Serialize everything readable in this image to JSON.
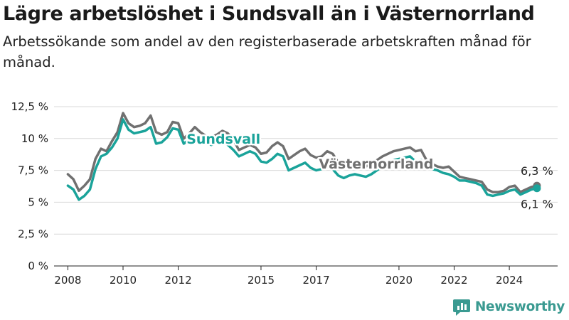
{
  "title": "Lägre arbetslöshet i Sundsvall än i Västernorrland",
  "subtitle": "Arbetssökande som andel av den registerbaserade arbetskraften månad för månad.",
  "brand": "Newsworthy",
  "colors": {
    "sundsvall": "#1aa39a",
    "vasternorrland": "#707070",
    "brand": "#3a9a91"
  },
  "chart_data": {
    "type": "line",
    "title": "Lägre arbetslöshet i Sundsvall än i Västernorrland",
    "subtitle": "Arbetssökande som andel av den registerbaserade arbetskraften månad för månad.",
    "xlabel": "",
    "ylabel": "",
    "xlim": [
      2007.5,
      2025.75
    ],
    "ylim": [
      0,
      12.5
    ],
    "grid": "horizontal",
    "y_ticks": [
      0,
      2.5,
      5,
      7.5,
      10,
      12.5
    ],
    "y_tick_labels": [
      "0 %",
      "2,5 %",
      "5 %",
      "7,5 %",
      "10 %",
      "12,5 %"
    ],
    "x_ticks": [
      2008,
      2010,
      2012,
      2015,
      2017,
      2020,
      2022,
      2024
    ],
    "x_tick_labels": [
      "2008",
      "2010",
      "2012",
      "2015",
      "2017",
      "2020",
      "2022",
      "2024"
    ],
    "series": [
      {
        "name": "Västernorrland",
        "color": "#707070",
        "end_label": "6,3 %",
        "x": [
          2008.0,
          2008.2,
          2008.4,
          2008.6,
          2008.8,
          2009.0,
          2009.2,
          2009.4,
          2009.6,
          2009.8,
          2010.0,
          2010.2,
          2010.4,
          2010.6,
          2010.8,
          2011.0,
          2011.2,
          2011.4,
          2011.6,
          2011.8,
          2012.0,
          2012.2,
          2012.4,
          2012.6,
          2012.8,
          2013.0,
          2013.2,
          2013.4,
          2013.6,
          2013.8,
          2014.0,
          2014.2,
          2014.4,
          2014.6,
          2014.8,
          2015.0,
          2015.2,
          2015.4,
          2015.6,
          2015.8,
          2016.0,
          2016.2,
          2016.4,
          2016.6,
          2016.8,
          2017.0,
          2017.2,
          2017.4,
          2017.6,
          2017.8,
          2018.0,
          2018.2,
          2018.4,
          2018.6,
          2018.8,
          2019.0,
          2019.2,
          2019.4,
          2019.6,
          2019.8,
          2020.0,
          2020.2,
          2020.4,
          2020.6,
          2020.8,
          2021.0,
          2021.2,
          2021.4,
          2021.6,
          2021.8,
          2022.0,
          2022.2,
          2022.4,
          2022.6,
          2022.8,
          2023.0,
          2023.2,
          2023.4,
          2023.6,
          2023.8,
          2024.0,
          2024.2,
          2024.4,
          2024.6,
          2024.8,
          2025.0
        ],
        "values": [
          7.2,
          6.8,
          5.9,
          6.3,
          6.8,
          8.4,
          9.2,
          9.0,
          9.8,
          10.5,
          12.0,
          11.2,
          10.9,
          11.0,
          11.2,
          11.8,
          10.5,
          10.3,
          10.5,
          11.3,
          11.2,
          10.0,
          10.4,
          10.9,
          10.5,
          10.2,
          10.1,
          10.3,
          10.6,
          10.4,
          9.9,
          9.1,
          9.3,
          9.5,
          9.3,
          8.8,
          8.9,
          9.4,
          9.7,
          9.4,
          8.4,
          8.7,
          9.0,
          9.2,
          8.7,
          8.5,
          8.6,
          9.0,
          8.8,
          8.1,
          7.8,
          7.8,
          8.0,
          7.9,
          7.8,
          8.0,
          8.3,
          8.6,
          8.8,
          9.0,
          9.1,
          9.2,
          9.3,
          9.0,
          9.1,
          8.3,
          8.0,
          7.8,
          7.7,
          7.8,
          7.4,
          7.0,
          6.9,
          6.8,
          6.7,
          6.6,
          6.0,
          5.8,
          5.8,
          5.9,
          6.2,
          6.3,
          5.8,
          6.0,
          6.2,
          6.3
        ]
      },
      {
        "name": "Sundsvall",
        "color": "#1aa39a",
        "end_label": "6,1 %",
        "x": [
          2008.0,
          2008.2,
          2008.4,
          2008.6,
          2008.8,
          2009.0,
          2009.2,
          2009.4,
          2009.6,
          2009.8,
          2010.0,
          2010.2,
          2010.4,
          2010.6,
          2010.8,
          2011.0,
          2011.2,
          2011.4,
          2011.6,
          2011.8,
          2012.0,
          2012.2,
          2012.4,
          2012.6,
          2012.8,
          2013.0,
          2013.2,
          2013.4,
          2013.6,
          2013.8,
          2014.0,
          2014.2,
          2014.4,
          2014.6,
          2014.8,
          2015.0,
          2015.2,
          2015.4,
          2015.6,
          2015.8,
          2016.0,
          2016.2,
          2016.4,
          2016.6,
          2016.8,
          2017.0,
          2017.2,
          2017.4,
          2017.6,
          2017.8,
          2018.0,
          2018.2,
          2018.4,
          2018.6,
          2018.8,
          2019.0,
          2019.2,
          2019.4,
          2019.6,
          2019.8,
          2020.0,
          2020.2,
          2020.4,
          2020.6,
          2020.8,
          2021.0,
          2021.2,
          2021.4,
          2021.6,
          2021.8,
          2022.0,
          2022.2,
          2022.4,
          2022.6,
          2022.8,
          2023.0,
          2023.2,
          2023.4,
          2023.6,
          2023.8,
          2024.0,
          2024.2,
          2024.4,
          2024.6,
          2024.8,
          2025.0
        ],
        "values": [
          6.3,
          6.0,
          5.2,
          5.5,
          6.0,
          7.6,
          8.6,
          8.8,
          9.3,
          10.0,
          11.5,
          10.7,
          10.4,
          10.5,
          10.6,
          10.9,
          9.6,
          9.7,
          10.1,
          10.8,
          10.7,
          9.6,
          9.9,
          10.3,
          9.9,
          9.7,
          9.5,
          9.7,
          9.9,
          9.5,
          9.1,
          8.6,
          8.8,
          9.0,
          8.8,
          8.2,
          8.1,
          8.4,
          8.8,
          8.6,
          7.5,
          7.7,
          7.9,
          8.1,
          7.7,
          7.5,
          7.6,
          7.8,
          7.6,
          7.1,
          6.9,
          7.1,
          7.2,
          7.1,
          7.0,
          7.2,
          7.5,
          7.8,
          8.0,
          8.3,
          8.4,
          8.5,
          8.6,
          8.2,
          8.3,
          7.8,
          7.6,
          7.5,
          7.3,
          7.2,
          7.0,
          6.7,
          6.7,
          6.6,
          6.5,
          6.3,
          5.6,
          5.5,
          5.6,
          5.7,
          5.9,
          6.0,
          5.6,
          5.8,
          6.0,
          6.1
        ]
      }
    ]
  }
}
